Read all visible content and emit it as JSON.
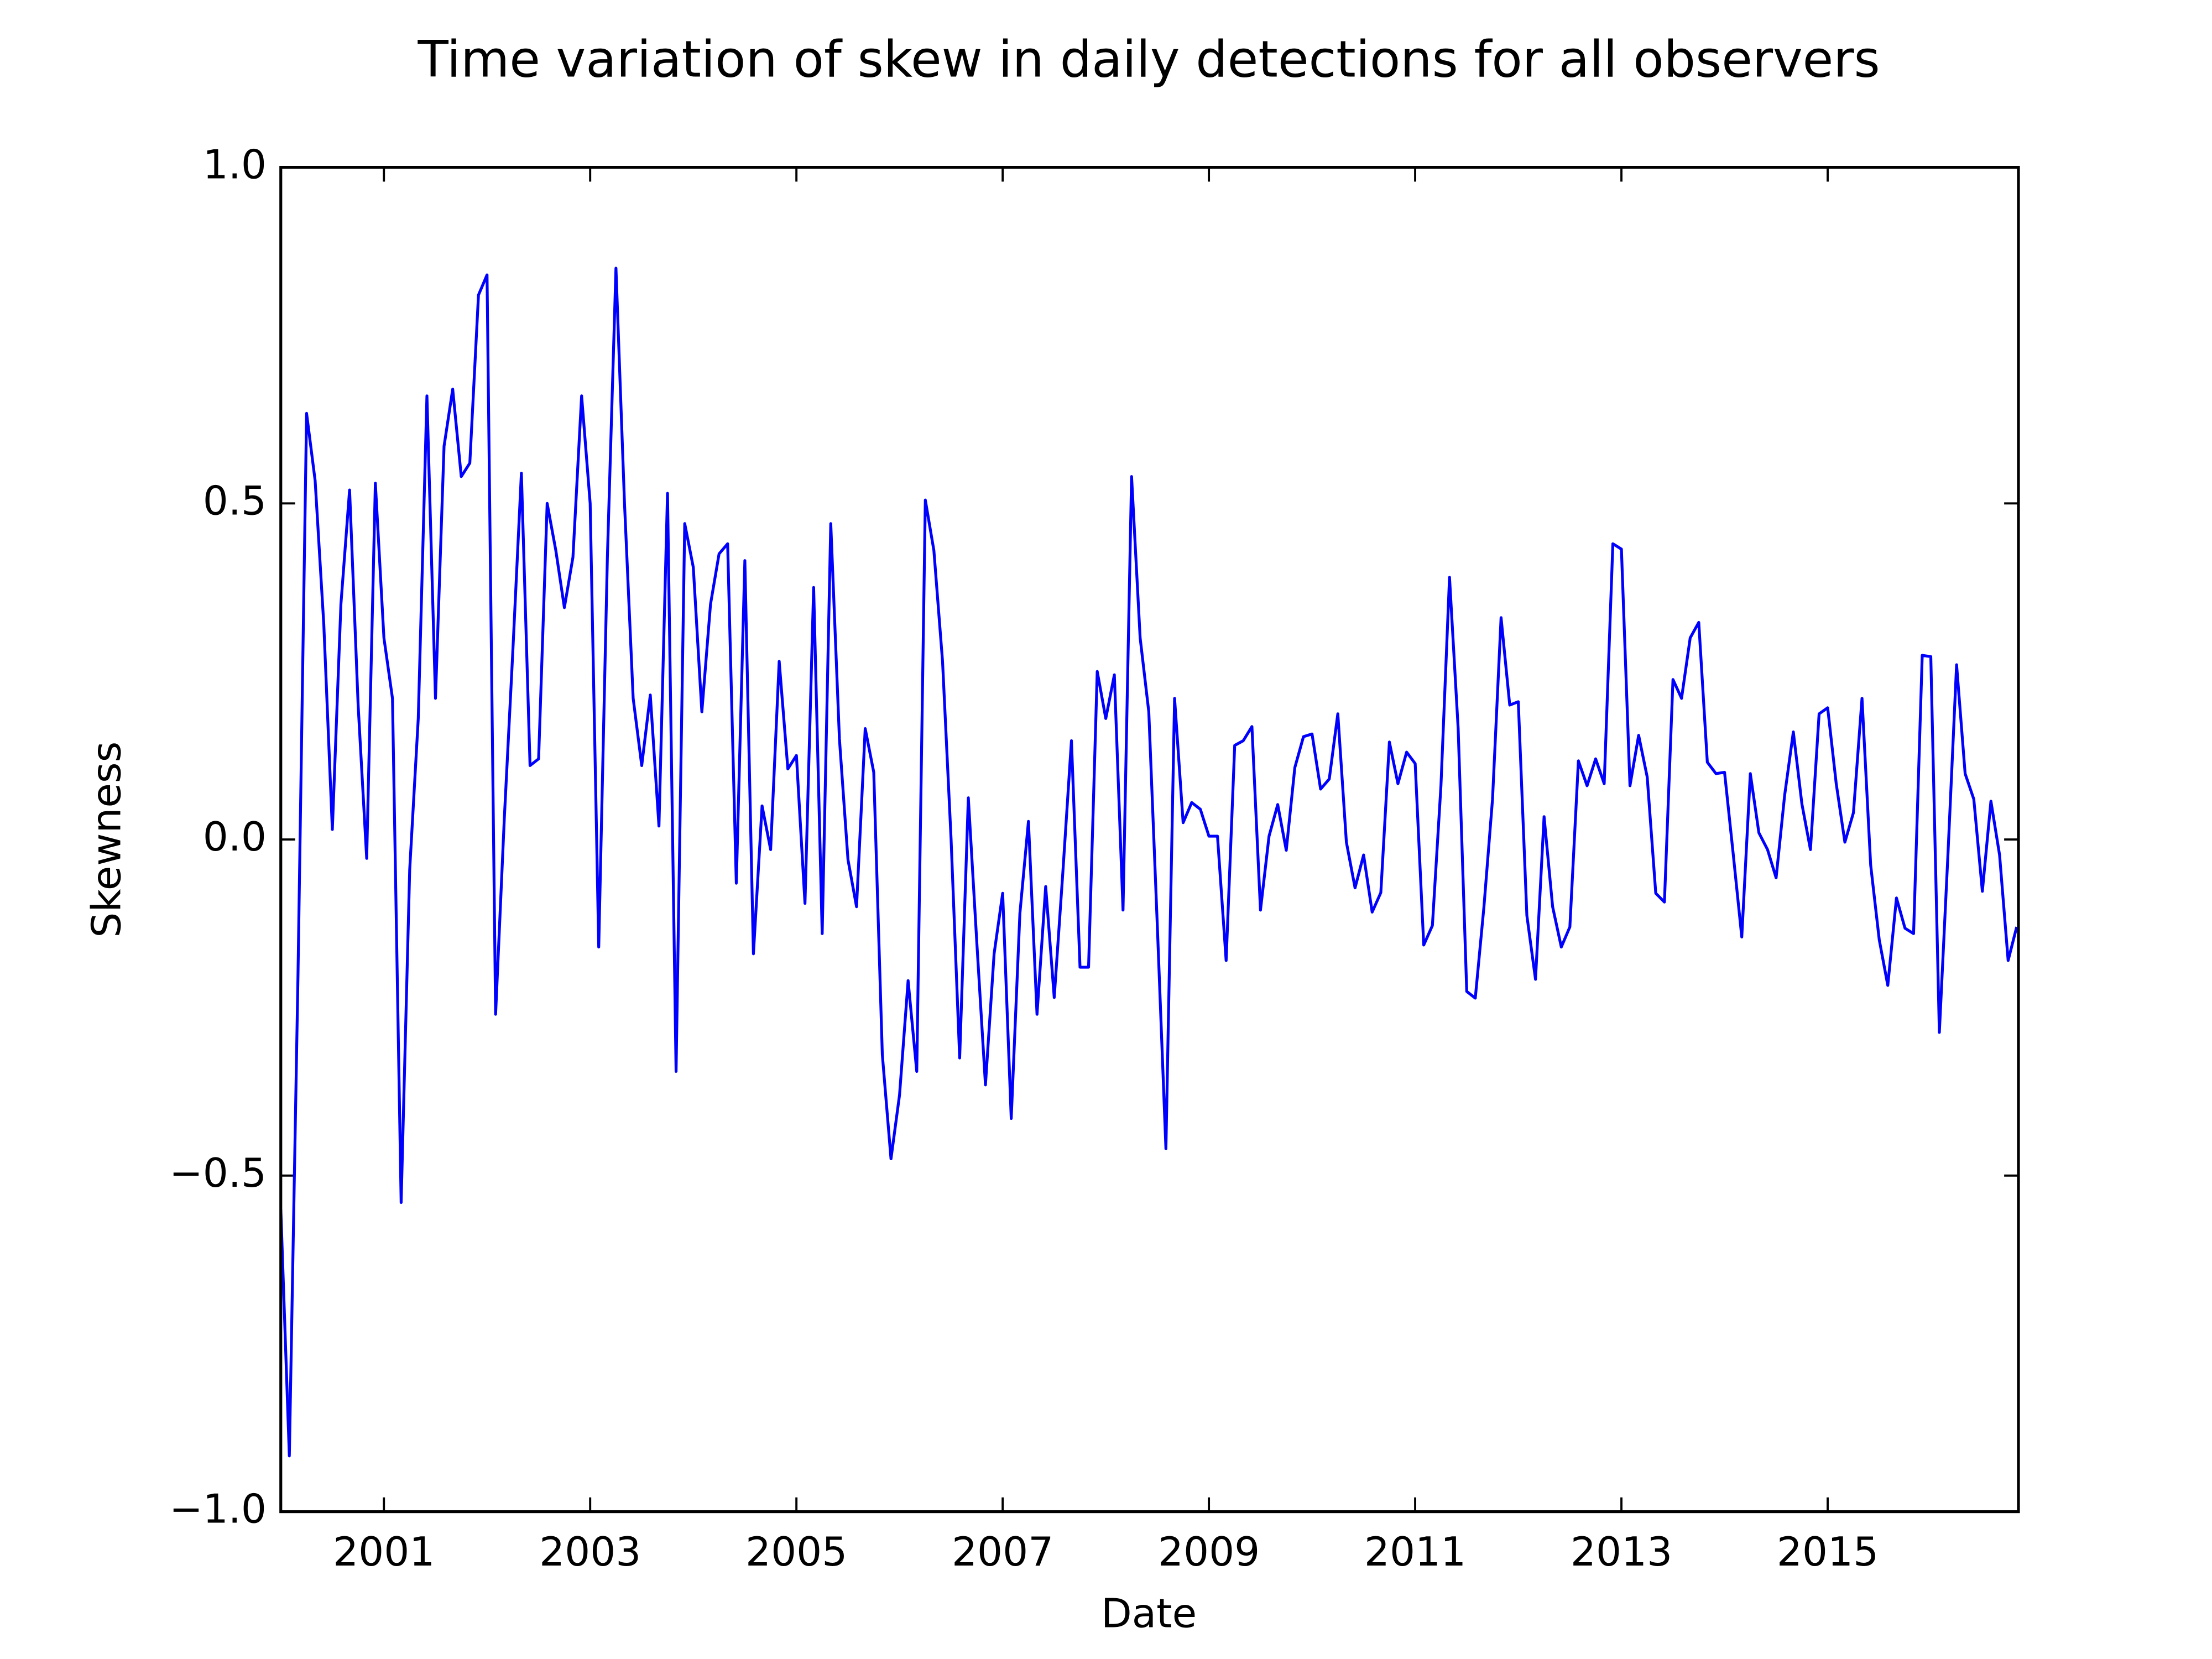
{
  "chart_data": {
    "type": "line",
    "title": "Time variation of skew in daily detections for all observers",
    "x_label": "Date",
    "y_label": "Skewness",
    "color": "#0000ff",
    "xlim": [
      2000.0,
      2016.85
    ],
    "ylim": [
      -1.0,
      1.0
    ],
    "xticks": [
      2001,
      2003,
      2005,
      2007,
      2009,
      2011,
      2013,
      2015
    ],
    "yticks": [
      {
        "value": -1.0,
        "label": "−1.0"
      },
      {
        "value": -0.5,
        "label": "−0.5"
      },
      {
        "value": 0.0,
        "label": "0.0"
      },
      0.5,
      {
        "value": 1.0,
        "label": "1.0"
      }
    ],
    "grid": false,
    "x": [
      2000.0,
      2000.083,
      2000.167,
      2000.25,
      2000.333,
      2000.417,
      2000.5,
      2000.583,
      2000.667,
      2000.75,
      2000.833,
      2000.917,
      2001.0,
      2001.083,
      2001.167,
      2001.25,
      2001.333,
      2001.417,
      2001.5,
      2001.583,
      2001.667,
      2001.75,
      2001.833,
      2001.917,
      2002.0,
      2002.083,
      2002.167,
      2002.25,
      2002.333,
      2002.417,
      2002.5,
      2002.583,
      2002.667,
      2002.75,
      2002.833,
      2002.917,
      2003.0,
      2003.083,
      2003.167,
      2003.25,
      2003.333,
      2003.417,
      2003.5,
      2003.583,
      2003.667,
      2003.75,
      2003.833,
      2003.917,
      2004.0,
      2004.083,
      2004.167,
      2004.25,
      2004.333,
      2004.417,
      2004.5,
      2004.583,
      2004.667,
      2004.75,
      2004.833,
      2004.917,
      2005.0,
      2005.083,
      2005.167,
      2005.25,
      2005.333,
      2005.417,
      2005.5,
      2005.583,
      2005.667,
      2005.75,
      2005.833,
      2005.917,
      2006.0,
      2006.083,
      2006.167,
      2006.25,
      2006.333,
      2006.417,
      2006.5,
      2006.583,
      2006.667,
      2006.75,
      2006.833,
      2006.917,
      2007.0,
      2007.083,
      2007.167,
      2007.25,
      2007.333,
      2007.417,
      2007.5,
      2007.583,
      2007.667,
      2007.75,
      2007.833,
      2007.917,
      2008.0,
      2008.083,
      2008.167,
      2008.25,
      2008.333,
      2008.417,
      2008.5,
      2008.583,
      2008.667,
      2008.75,
      2008.833,
      2008.917,
      2009.0,
      2009.083,
      2009.167,
      2009.25,
      2009.333,
      2009.417,
      2009.5,
      2009.583,
      2009.667,
      2009.75,
      2009.833,
      2009.917,
      2010.0,
      2010.083,
      2010.167,
      2010.25,
      2010.333,
      2010.417,
      2010.5,
      2010.583,
      2010.667,
      2010.75,
      2010.833,
      2010.917,
      2011.0,
      2011.083,
      2011.167,
      2011.25,
      2011.333,
      2011.417,
      2011.5,
      2011.583,
      2011.667,
      2011.75,
      2011.833,
      2011.917,
      2012.0,
      2012.083,
      2012.167,
      2012.25,
      2012.333,
      2012.417,
      2012.5,
      2012.583,
      2012.667,
      2012.75,
      2012.833,
      2012.917,
      2013.0,
      2013.083,
      2013.167,
      2013.25,
      2013.333,
      2013.417,
      2013.5,
      2013.583,
      2013.667,
      2013.75,
      2013.833,
      2013.917,
      2014.0,
      2014.083,
      2014.167,
      2014.25,
      2014.333,
      2014.417,
      2014.5,
      2014.583,
      2014.667,
      2014.75,
      2014.833,
      2014.917,
      2015.0,
      2015.083,
      2015.167,
      2015.25,
      2015.333,
      2015.417,
      2015.5,
      2015.583,
      2015.667,
      2015.75,
      2015.833,
      2015.917,
      2016.0,
      2016.083,
      2016.167,
      2016.25,
      2016.333,
      2016.417,
      2016.5,
      2016.583,
      2016.667,
      2016.75,
      2016.833
    ],
    "values": [
      -0.55,
      -0.917,
      -0.2,
      0.634,
      0.534,
      0.32,
      0.015,
      0.35,
      0.52,
      0.2,
      -0.028,
      0.53,
      0.3,
      0.21,
      -0.54,
      -0.045,
      0.18,
      0.66,
      0.21,
      0.585,
      0.67,
      0.54,
      0.56,
      0.81,
      0.84,
      -0.26,
      0.03,
      0.28,
      0.545,
      0.11,
      0.12,
      0.5,
      0.43,
      0.345,
      0.42,
      0.66,
      0.5,
      -0.16,
      0.42,
      0.85,
      0.5,
      0.21,
      0.11,
      0.215,
      0.02,
      0.515,
      -0.345,
      0.47,
      0.405,
      0.19,
      0.35,
      0.425,
      0.44,
      -0.065,
      0.415,
      -0.17,
      0.05,
      -0.015,
      0.265,
      0.105,
      0.125,
      -0.095,
      0.375,
      -0.14,
      0.47,
      0.15,
      -0.03,
      -0.1,
      0.165,
      0.1,
      -0.32,
      -0.475,
      -0.38,
      -0.21,
      -0.345,
      0.505,
      0.43,
      0.265,
      0.0,
      -0.325,
      0.062,
      -0.155,
      -0.365,
      -0.17,
      -0.08,
      -0.415,
      -0.11,
      0.027,
      -0.26,
      -0.07,
      -0.235,
      -0.05,
      0.147,
      -0.19,
      -0.19,
      0.25,
      0.18,
      0.245,
      -0.105,
      0.54,
      0.3,
      0.19,
      -0.13,
      -0.46,
      0.21,
      0.025,
      0.055,
      0.045,
      0.005,
      0.005,
      -0.18,
      0.14,
      0.147,
      0.168,
      -0.105,
      0.005,
      0.052,
      -0.016,
      0.107,
      0.153,
      0.157,
      0.075,
      0.09,
      0.187,
      -0.004,
      -0.072,
      -0.023,
      -0.108,
      -0.079,
      0.145,
      0.083,
      0.13,
      0.113,
      -0.157,
      -0.128,
      0.08,
      0.39,
      0.165,
      -0.226,
      -0.236,
      -0.1,
      0.06,
      0.33,
      0.2,
      0.205,
      -0.113,
      -0.208,
      0.034,
      -0.1,
      -0.16,
      -0.13,
      0.117,
      0.08,
      0.12,
      0.083,
      0.44,
      0.432,
      0.08,
      0.155,
      0.093,
      -0.08,
      -0.093,
      0.238,
      0.21,
      0.3,
      0.323,
      0.115,
      0.098,
      0.1,
      -0.02,
      -0.145,
      0.098,
      0.01,
      -0.015,
      -0.057,
      0.066,
      0.16,
      0.053,
      -0.015,
      0.187,
      0.196,
      0.083,
      -0.004,
      0.04,
      0.21,
      -0.038,
      -0.149,
      -0.217,
      -0.087,
      -0.132,
      -0.14,
      0.274,
      0.272,
      -0.287,
      -0.02,
      0.26,
      0.098,
      0.06,
      -0.077,
      0.057,
      -0.023,
      -0.18,
      -0.13
    ]
  }
}
